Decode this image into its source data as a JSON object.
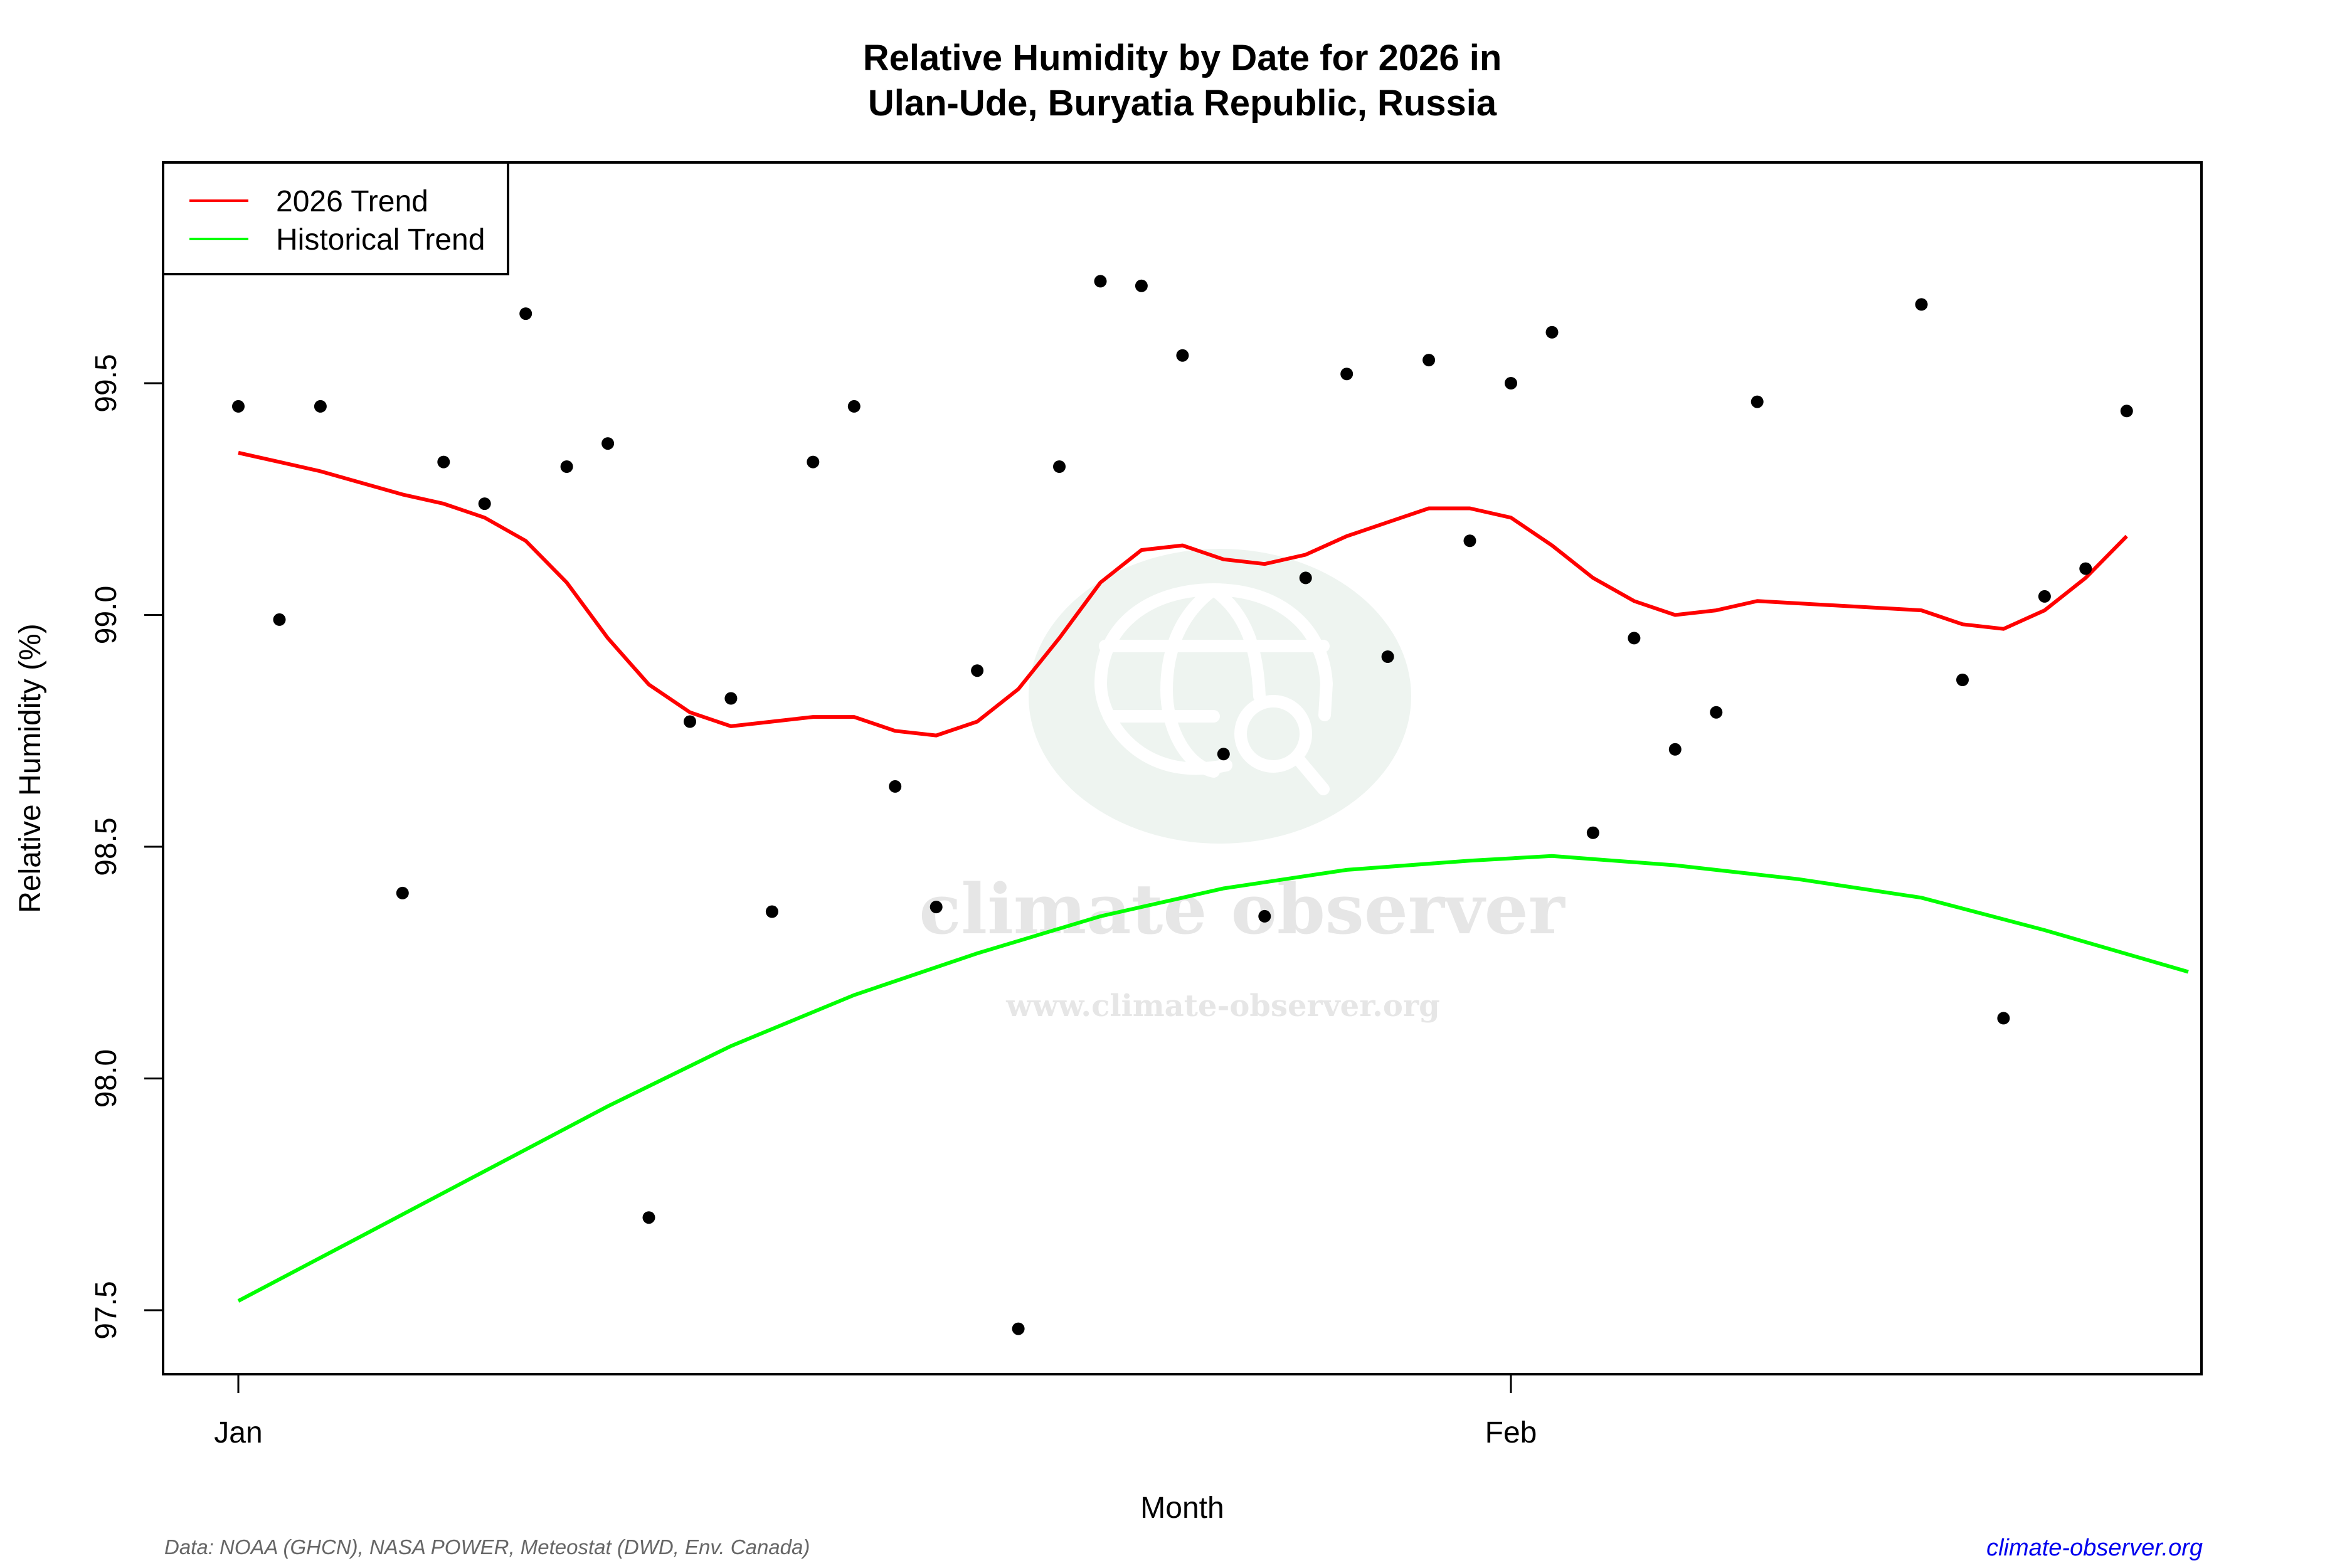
{
  "title": {
    "line1": "Relative Humidity by Date for 2026 in",
    "line2": "Ulan-Ude, Buryatia Republic, Russia"
  },
  "axes": {
    "xlabel": "Month",
    "ylabel": "Relative Humidity (%)",
    "x_ticks": [
      {
        "label": "Jan",
        "day": 1
      },
      {
        "label": "Feb",
        "day": 32
      }
    ],
    "y_ticks": [
      {
        "label": "97.5",
        "value": 97.5
      },
      {
        "label": "98.0",
        "value": 98.0
      },
      {
        "label": "98.5",
        "value": 98.5
      },
      {
        "label": "99.0",
        "value": 99.0
      },
      {
        "label": "99.5",
        "value": 99.5
      }
    ]
  },
  "legend": {
    "items": [
      {
        "label": "2026 Trend",
        "color": "#ff0000"
      },
      {
        "label": "Historical Trend",
        "color": "#00ff00"
      }
    ]
  },
  "footer": {
    "source": "Data: NOAA (GHCN), NASA POWER, Meteostat (DWD, Env. Canada)",
    "site": "climate-observer.org"
  },
  "watermark": {
    "name": "climate observer",
    "url": "www.climate-observer.org"
  },
  "colors": {
    "points": "#000000",
    "trend_2026": "#ff0000",
    "historical": "#00ff00",
    "watermark_circle": "#eef4f0",
    "footer_link": "#0000ee"
  },
  "chart_data": {
    "type": "scatter",
    "title": "Relative Humidity by Date for 2026 in Ulan-Ude, Buryatia Republic, Russia",
    "xlabel": "Month",
    "ylabel": "Relative Humidity (%)",
    "xlim_days": [
      -0.8,
      48.5
    ],
    "ylim": [
      97.36,
      99.97
    ],
    "grid": false,
    "legend_position": "topleft",
    "series": [
      {
        "name": "Daily observations",
        "kind": "points",
        "color": "#000000",
        "points": [
          {
            "date": "Jan 1",
            "day": 1,
            "value": 99.45
          },
          {
            "date": "Jan 2",
            "day": 2,
            "value": 98.99
          },
          {
            "date": "Jan 3",
            "day": 3,
            "value": 99.45
          },
          {
            "date": "Jan 5",
            "day": 5,
            "value": 98.4
          },
          {
            "date": "Jan 6",
            "day": 6,
            "value": 99.33
          },
          {
            "date": "Jan 7",
            "day": 7,
            "value": 99.24
          },
          {
            "date": "Jan 8",
            "day": 8,
            "value": 99.65
          },
          {
            "date": "Jan 9",
            "day": 9,
            "value": 99.32
          },
          {
            "date": "Jan 10",
            "day": 10,
            "value": 99.37
          },
          {
            "date": "Jan 11",
            "day": 11,
            "value": 97.7
          },
          {
            "date": "Jan 12",
            "day": 12,
            "value": 98.77
          },
          {
            "date": "Jan 13",
            "day": 13,
            "value": 98.82
          },
          {
            "date": "Jan 14",
            "day": 14,
            "value": 98.36
          },
          {
            "date": "Jan 15",
            "day": 15,
            "value": 99.33
          },
          {
            "date": "Jan 16",
            "day": 16,
            "value": 99.45
          },
          {
            "date": "Jan 17",
            "day": 17,
            "value": 98.63
          },
          {
            "date": "Jan 18",
            "day": 18,
            "value": 98.37
          },
          {
            "date": "Jan 19",
            "day": 19,
            "value": 98.88
          },
          {
            "date": "Jan 20",
            "day": 20,
            "value": 97.46
          },
          {
            "date": "Jan 21",
            "day": 21,
            "value": 99.32
          },
          {
            "date": "Jan 22",
            "day": 22,
            "value": 99.72
          },
          {
            "date": "Jan 23",
            "day": 23,
            "value": 99.71
          },
          {
            "date": "Jan 24",
            "day": 24,
            "value": 99.56
          },
          {
            "date": "Jan 25",
            "day": 25,
            "value": 98.7
          },
          {
            "date": "Jan 26",
            "day": 26,
            "value": 98.35
          },
          {
            "date": "Jan 27",
            "day": 27,
            "value": 99.08
          },
          {
            "date": "Jan 28",
            "day": 28,
            "value": 99.52
          },
          {
            "date": "Jan 29",
            "day": 29,
            "value": 98.91
          },
          {
            "date": "Jan 30",
            "day": 30,
            "value": 99.55
          },
          {
            "date": "Jan 31",
            "day": 31,
            "value": 99.16
          },
          {
            "date": "Feb 1",
            "day": 32,
            "value": 99.5
          },
          {
            "date": "Feb 2",
            "day": 33,
            "value": 99.61
          },
          {
            "date": "Feb 3",
            "day": 34,
            "value": 98.53
          },
          {
            "date": "Feb 4",
            "day": 35,
            "value": 98.95
          },
          {
            "date": "Feb 5",
            "day": 36,
            "value": 98.71
          },
          {
            "date": "Feb 6",
            "day": 37,
            "value": 98.79
          },
          {
            "date": "Feb 7",
            "day": 38,
            "value": 99.46
          },
          {
            "date": "Feb 11",
            "day": 42,
            "value": 99.67
          },
          {
            "date": "Feb 12",
            "day": 43,
            "value": 98.86
          },
          {
            "date": "Feb 13",
            "day": 44,
            "value": 98.13
          },
          {
            "date": "Feb 14",
            "day": 45,
            "value": 99.04
          },
          {
            "date": "Feb 15",
            "day": 46,
            "value": 99.1
          },
          {
            "date": "Feb 16",
            "day": 47,
            "value": 99.44
          }
        ]
      },
      {
        "name": "2026 Trend",
        "kind": "line",
        "color": "#ff0000",
        "points": [
          {
            "day": 1,
            "value": 99.35
          },
          {
            "day": 2,
            "value": 99.33
          },
          {
            "day": 3,
            "value": 99.31
          },
          {
            "day": 5,
            "value": 99.26
          },
          {
            "day": 6,
            "value": 99.24
          },
          {
            "day": 7,
            "value": 99.21
          },
          {
            "day": 8,
            "value": 99.16
          },
          {
            "day": 9,
            "value": 99.07
          },
          {
            "day": 10,
            "value": 98.95
          },
          {
            "day": 11,
            "value": 98.85
          },
          {
            "day": 12,
            "value": 98.79
          },
          {
            "day": 13,
            "value": 98.76
          },
          {
            "day": 14,
            "value": 98.77
          },
          {
            "day": 15,
            "value": 98.78
          },
          {
            "day": 16,
            "value": 98.78
          },
          {
            "day": 17,
            "value": 98.75
          },
          {
            "day": 18,
            "value": 98.74
          },
          {
            "day": 19,
            "value": 98.77
          },
          {
            "day": 20,
            "value": 98.84
          },
          {
            "day": 21,
            "value": 98.95
          },
          {
            "day": 22,
            "value": 99.07
          },
          {
            "day": 23,
            "value": 99.14
          },
          {
            "day": 24,
            "value": 99.15
          },
          {
            "day": 25,
            "value": 99.12
          },
          {
            "day": 26,
            "value": 99.11
          },
          {
            "day": 27,
            "value": 99.13
          },
          {
            "day": 28,
            "value": 99.17
          },
          {
            "day": 29,
            "value": 99.2
          },
          {
            "day": 30,
            "value": 99.23
          },
          {
            "day": 31,
            "value": 99.23
          },
          {
            "day": 32,
            "value": 99.21
          },
          {
            "day": 33,
            "value": 99.15
          },
          {
            "day": 34,
            "value": 99.08
          },
          {
            "day": 35,
            "value": 99.03
          },
          {
            "day": 36,
            "value": 99.0
          },
          {
            "day": 37,
            "value": 99.01
          },
          {
            "day": 38,
            "value": 99.03
          },
          {
            "day": 42,
            "value": 99.01
          },
          {
            "day": 43,
            "value": 98.98
          },
          {
            "day": 44,
            "value": 98.97
          },
          {
            "day": 45,
            "value": 99.01
          },
          {
            "day": 46,
            "value": 99.08
          },
          {
            "day": 47,
            "value": 99.17
          }
        ]
      },
      {
        "name": "Historical Trend",
        "kind": "line",
        "color": "#00ff00",
        "points": [
          {
            "day": 1,
            "value": 97.52
          },
          {
            "day": 4,
            "value": 97.66
          },
          {
            "day": 7,
            "value": 97.8
          },
          {
            "day": 10,
            "value": 97.94
          },
          {
            "day": 13,
            "value": 98.07
          },
          {
            "day": 16,
            "value": 98.18
          },
          {
            "day": 19,
            "value": 98.27
          },
          {
            "day": 22,
            "value": 98.35
          },
          {
            "day": 25,
            "value": 98.41
          },
          {
            "day": 28,
            "value": 98.45
          },
          {
            "day": 31,
            "value": 98.47
          },
          {
            "day": 33,
            "value": 98.48
          },
          {
            "day": 36,
            "value": 98.46
          },
          {
            "day": 39,
            "value": 98.43
          },
          {
            "day": 42,
            "value": 98.39
          },
          {
            "day": 45,
            "value": 98.32
          },
          {
            "day": 48.5,
            "value": 98.23
          }
        ]
      }
    ]
  }
}
